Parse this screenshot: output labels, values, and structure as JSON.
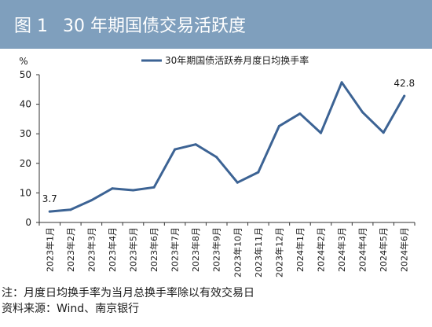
{
  "figure": {
    "label": "图 1",
    "title": "30 年期国债交易活跃度",
    "note": "注：月度日均换手率为当月总换手率除以有效交易日",
    "source": "资料来源：Wind、南京银行"
  },
  "chart_data": {
    "type": "line",
    "ylabel": "%",
    "ylim": [
      0,
      50
    ],
    "yticks": [
      0,
      10,
      20,
      30,
      40,
      50
    ],
    "legend_position": "top-center",
    "grid": false,
    "categories": [
      "2023年1月",
      "2023年2月",
      "2023年3月",
      "2023年4月",
      "2023年5月",
      "2023年6月",
      "2023年7月",
      "2023年8月",
      "2023年9月",
      "2023年10月",
      "2023年11月",
      "2023年12月",
      "2024年1月",
      "2024年2月",
      "2024年3月",
      "2024年4月",
      "2024年5月",
      "2024年6月"
    ],
    "series": [
      {
        "name": "30年期国债活跃券月度日均换手率",
        "color": "#3c6394",
        "values": [
          3.7,
          4.3,
          7.5,
          11.5,
          10.9,
          11.9,
          24.7,
          26.4,
          22.1,
          13.5,
          17.0,
          32.6,
          36.8,
          30.3,
          47.4,
          37.3,
          30.4,
          42.8
        ]
      }
    ],
    "data_labels": [
      {
        "index": 0,
        "text": "3.7"
      },
      {
        "index": 17,
        "text": "42.8"
      }
    ]
  }
}
